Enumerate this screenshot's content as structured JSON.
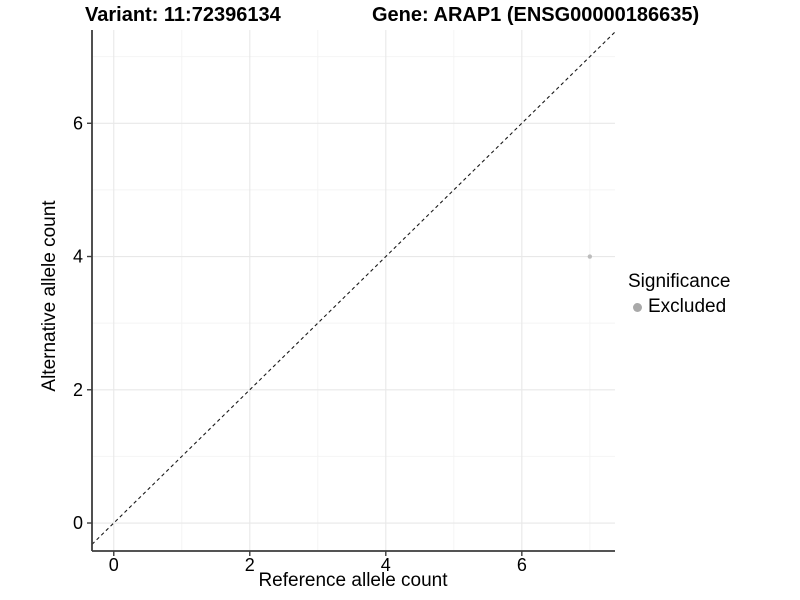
{
  "chart_data": {
    "type": "scatter",
    "titles": {
      "left": "Variant: 11:72396134",
      "right": "Gene: ARAP1 (ENSG00000186635)"
    },
    "xlabel": "Reference allele count",
    "ylabel": "Alternative allele count",
    "x_ticks": [
      0,
      2,
      4,
      6
    ],
    "y_ticks": [
      0,
      2,
      4,
      6
    ],
    "x_minor": [
      1,
      3,
      5,
      7
    ],
    "y_minor": [
      1,
      3,
      5,
      7
    ],
    "xlim": [
      -0.32,
      7.37
    ],
    "ylim": [
      -0.42,
      7.4
    ],
    "grid": "major+minor",
    "legend_position": "right",
    "identity_line": {
      "slope": 1,
      "intercept": 0,
      "style": "dashed",
      "color": "#1a1a1a"
    },
    "series": [
      {
        "name": "Excluded",
        "color": "#bcbcbc",
        "point_radius": 2.2,
        "points": [
          [
            7,
            4
          ]
        ]
      }
    ],
    "legend": {
      "title": "Significance",
      "items": [
        {
          "label": "Excluded",
          "color": "#a9a9a9"
        }
      ]
    },
    "colors": {
      "background": "#ffffff",
      "grid_major": "#e8e8e8",
      "grid_minor": "#f4f4f4",
      "axis_line": "#3c3c3c",
      "tick_mark": "#3c3c3c",
      "text": "#000000"
    }
  }
}
